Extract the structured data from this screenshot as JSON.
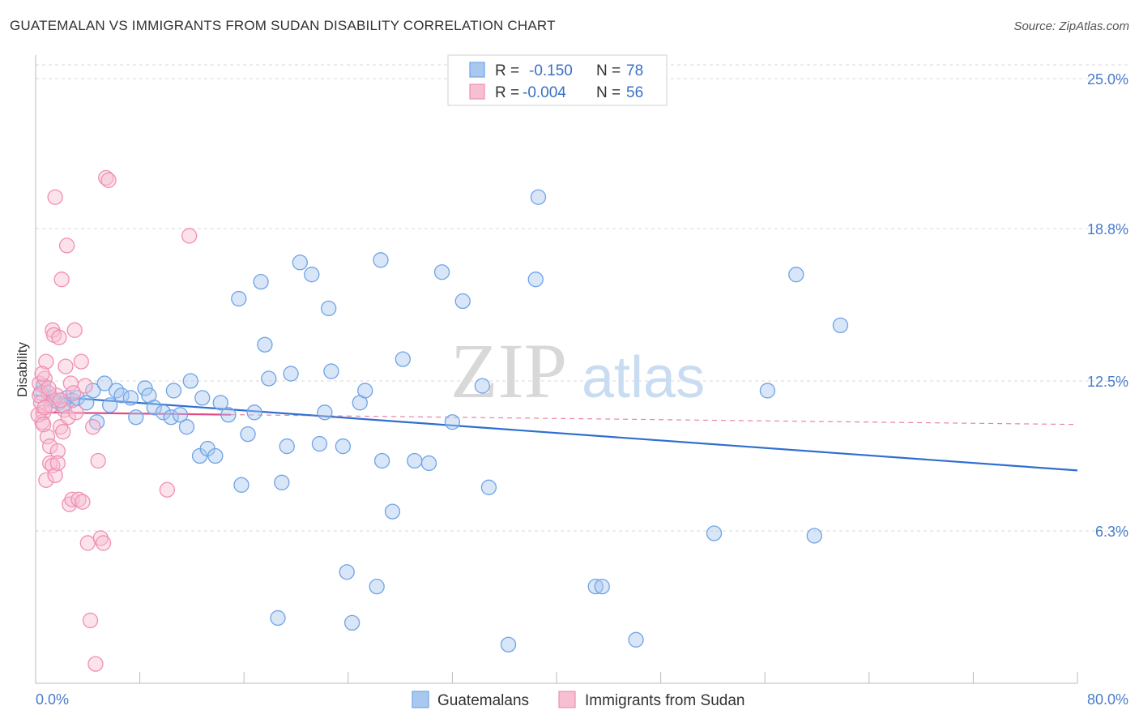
{
  "header": {
    "title": "GUATEMALAN VS IMMIGRANTS FROM SUDAN DISABILITY CORRELATION CHART",
    "source": "Source: ZipAtlas.com"
  },
  "watermark": {
    "zip": "ZIP",
    "atlas": "atlas"
  },
  "colors": {
    "blue": "#6fa3e6",
    "blue_fill": "#a9c8f0",
    "blue_line": "#2f6fce",
    "pink": "#f08fb2",
    "pink_fill": "#f6bfd2",
    "pink_line": "#e24c84",
    "grid": "#d8d8d8",
    "axis_text": "#4a7cc9"
  },
  "legend": {
    "rows": [
      {
        "r_label": "R =",
        "r_value": "-0.150",
        "n_label": "N =",
        "n_value": "78"
      },
      {
        "r_label": "R =",
        "r_value": "-0.004",
        "n_label": "N =",
        "n_value": "56"
      }
    ]
  },
  "bottom_legend": [
    "Guatemalans",
    "Immigrants from Sudan"
  ],
  "chart_data": {
    "type": "scatter",
    "title": "GUATEMALAN VS IMMIGRANTS FROM SUDAN DISABILITY CORRELATION CHART",
    "xlabel": "",
    "ylabel": "Disability",
    "xlim": [
      0,
      80
    ],
    "ylim": [
      0,
      25.7
    ],
    "x_tick_labels": [
      "0.0%",
      "80.0%"
    ],
    "y_ticks": [
      {
        "value": 25.0,
        "label": "25.0%"
      },
      {
        "value": 18.8,
        "label": "18.8%"
      },
      {
        "value": 12.5,
        "label": "12.5%"
      },
      {
        "value": 6.3,
        "label": "6.3%"
      }
    ],
    "series": [
      {
        "name": "Guatemalans",
        "color": "blue",
        "trend": {
          "x": [
            0,
            80
          ],
          "y": [
            11.9,
            8.8
          ],
          "dashed_from": null
        },
        "points": [
          [
            0.6,
            12.3
          ],
          [
            1.2,
            11.8
          ],
          [
            1.8,
            11.6
          ],
          [
            2.4,
            11.8
          ],
          [
            2.8,
            11.7
          ],
          [
            3.2,
            11.8
          ],
          [
            3.9,
            11.6
          ],
          [
            4.7,
            10.8
          ],
          [
            4.4,
            12.1
          ],
          [
            5.3,
            12.4
          ],
          [
            5.7,
            11.5
          ],
          [
            6.2,
            12.1
          ],
          [
            6.6,
            11.9
          ],
          [
            7.3,
            11.8
          ],
          [
            7.7,
            11.0
          ],
          [
            8.4,
            12.2
          ],
          [
            8.7,
            11.9
          ],
          [
            9.1,
            11.4
          ],
          [
            9.8,
            11.2
          ],
          [
            10.4,
            11.0
          ],
          [
            10.6,
            12.1
          ],
          [
            11.1,
            11.1
          ],
          [
            11.6,
            10.6
          ],
          [
            11.9,
            12.5
          ],
          [
            12.6,
            9.4
          ],
          [
            12.8,
            11.8
          ],
          [
            13.2,
            9.7
          ],
          [
            13.8,
            9.4
          ],
          [
            14.2,
            11.6
          ],
          [
            14.8,
            11.1
          ],
          [
            15.6,
            15.9
          ],
          [
            15.8,
            8.2
          ],
          [
            16.3,
            10.3
          ],
          [
            16.8,
            11.2
          ],
          [
            17.3,
            16.6
          ],
          [
            17.6,
            14.0
          ],
          [
            17.9,
            12.6
          ],
          [
            18.6,
            2.7
          ],
          [
            18.9,
            8.3
          ],
          [
            19.3,
            9.8
          ],
          [
            19.6,
            12.8
          ],
          [
            20.3,
            17.4
          ],
          [
            21.2,
            16.9
          ],
          [
            21.8,
            9.9
          ],
          [
            22.2,
            11.2
          ],
          [
            22.5,
            15.5
          ],
          [
            22.7,
            12.9
          ],
          [
            23.6,
            9.8
          ],
          [
            23.9,
            4.6
          ],
          [
            24.3,
            2.5
          ],
          [
            24.9,
            11.6
          ],
          [
            25.3,
            12.1
          ],
          [
            26.2,
            4.0
          ],
          [
            26.5,
            17.5
          ],
          [
            26.6,
            9.2
          ],
          [
            27.4,
            7.1
          ],
          [
            28.2,
            13.4
          ],
          [
            29.1,
            9.2
          ],
          [
            30.2,
            9.1
          ],
          [
            31.2,
            17.0
          ],
          [
            32.0,
            10.8
          ],
          [
            32.8,
            15.8
          ],
          [
            34.3,
            12.3
          ],
          [
            34.8,
            8.1
          ],
          [
            36.3,
            1.6
          ],
          [
            38.4,
            16.7
          ],
          [
            38.6,
            20.1
          ],
          [
            43.0,
            4.0
          ],
          [
            43.5,
            4.0
          ],
          [
            46.1,
            1.8
          ],
          [
            52.1,
            6.2
          ],
          [
            56.2,
            12.1
          ],
          [
            58.4,
            16.9
          ],
          [
            59.8,
            6.1
          ],
          [
            61.8,
            14.8
          ],
          [
            0.4,
            12.0
          ],
          [
            1.4,
            11.7
          ],
          [
            2.1,
            11.5
          ]
        ]
      },
      {
        "name": "Immigrants from Sudan",
        "color": "pink",
        "trend": {
          "x": [
            0,
            80
          ],
          "y": [
            11.2,
            10.7
          ],
          "dashed_from": 15
        },
        "points": [
          [
            0.3,
            12.4
          ],
          [
            0.4,
            11.6
          ],
          [
            0.5,
            10.8
          ],
          [
            0.6,
            11.2
          ],
          [
            0.7,
            12.6
          ],
          [
            0.8,
            13.3
          ],
          [
            0.9,
            10.2
          ],
          [
            1.0,
            12.0
          ],
          [
            1.1,
            9.8
          ],
          [
            1.2,
            11.5
          ],
          [
            1.3,
            14.6
          ],
          [
            1.4,
            14.4
          ],
          [
            1.5,
            20.1
          ],
          [
            1.6,
            11.9
          ],
          [
            1.7,
            9.6
          ],
          [
            1.8,
            14.3
          ],
          [
            1.9,
            10.6
          ],
          [
            2.0,
            16.7
          ],
          [
            2.1,
            10.4
          ],
          [
            2.2,
            11.3
          ],
          [
            2.3,
            13.1
          ],
          [
            2.4,
            18.1
          ],
          [
            2.5,
            11.0
          ],
          [
            2.6,
            7.4
          ],
          [
            2.7,
            12.4
          ],
          [
            2.8,
            7.6
          ],
          [
            2.9,
            12.0
          ],
          [
            3.0,
            14.6
          ],
          [
            3.1,
            11.2
          ],
          [
            3.3,
            7.6
          ],
          [
            3.5,
            13.3
          ],
          [
            3.6,
            7.5
          ],
          [
            3.8,
            12.3
          ],
          [
            4.0,
            5.8
          ],
          [
            4.2,
            2.6
          ],
          [
            4.4,
            10.6
          ],
          [
            4.6,
            0.8
          ],
          [
            4.8,
            9.2
          ],
          [
            5.0,
            6.0
          ],
          [
            5.2,
            5.8
          ],
          [
            5.4,
            20.9
          ],
          [
            5.6,
            20.8
          ],
          [
            0.2,
            11.1
          ],
          [
            0.3,
            11.9
          ],
          [
            0.5,
            12.8
          ],
          [
            0.6,
            10.7
          ],
          [
            0.7,
            11.4
          ],
          [
            0.8,
            8.4
          ],
          [
            1.0,
            12.2
          ],
          [
            1.1,
            9.1
          ],
          [
            1.3,
            9.0
          ],
          [
            1.5,
            8.6
          ],
          [
            1.7,
            9.1
          ],
          [
            1.9,
            11.7
          ],
          [
            10.1,
            8.0
          ],
          [
            11.8,
            18.5
          ]
        ]
      }
    ]
  }
}
